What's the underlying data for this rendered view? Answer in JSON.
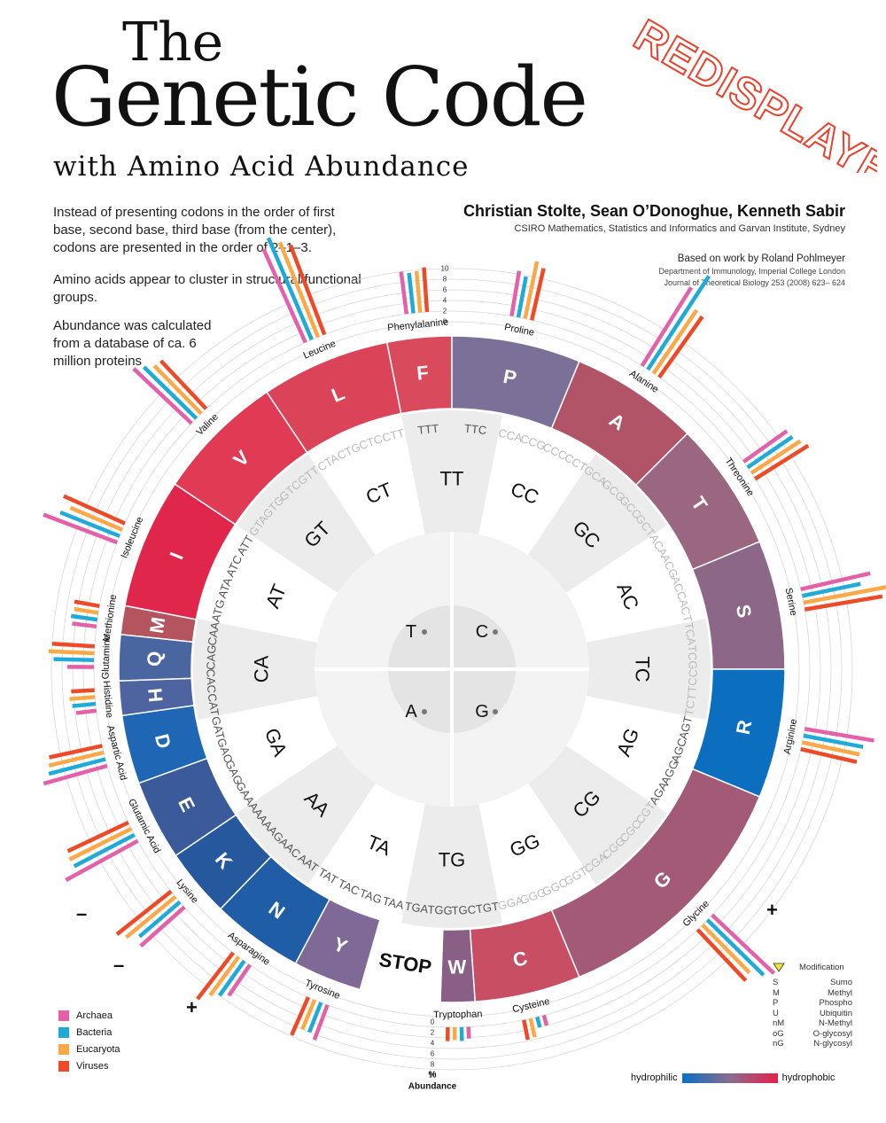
{
  "title": {
    "line1": "The",
    "line2": "Genetic Code",
    "subtitle": "with Amino Acid Abundance"
  },
  "stamp": "REDISPLAYED",
  "intro": [
    "Instead of presenting codons in the order of first base, second base, third base (from the center), codons are presented in the order of 2–1–3.",
    "Amino acids appear to cluster in structural/functional groups.",
    "Abundance was calculated from a database of ca. 6 million proteins"
  ],
  "authors": "Christian Stolte, Sean O’Donoghue, Kenneth Sabir",
  "affiliation": "CSIRO Mathematics, Statistics and Informatics and Garvan Institute, Sydney",
  "based_on": "Based on work by Roland Pohlmeyer",
  "department": "Department of Immunology, Imperial College London",
  "journal": "Journal of Theoretical Biology 253 (2008) 623– 624",
  "scale_top": [
    "10",
    "8",
    "6",
    "4",
    "2",
    "0"
  ],
  "scale_bottom": [
    "0",
    "2",
    "4",
    "6",
    "8",
    "10"
  ],
  "abundance_label": [
    "%",
    "Abundance"
  ],
  "center": [
    "T",
    "C",
    "A",
    "G"
  ],
  "wedges": [
    {
      "di": "TT",
      "codons": [
        [
          "TTT",
          1
        ],
        [
          "TTC",
          1
        ]
      ]
    },
    {
      "di": "CC",
      "codons": [
        [
          "CCA",
          0
        ],
        [
          "CCG",
          0
        ],
        [
          "CCC",
          0
        ],
        [
          "CCT",
          0
        ]
      ]
    },
    {
      "di": "GC",
      "codons": [
        [
          "GCA",
          0
        ],
        [
          "GCG",
          0
        ],
        [
          "GCC",
          0
        ],
        [
          "GCT",
          0
        ]
      ]
    },
    {
      "di": "AC",
      "codons": [
        [
          "ACA",
          0
        ],
        [
          "ACG",
          0
        ],
        [
          "ACC",
          0
        ],
        [
          "ACT",
          0
        ]
      ]
    },
    {
      "di": "TC",
      "codons": [
        [
          "TCA",
          0
        ],
        [
          "TCG",
          0
        ],
        [
          "TCC",
          0
        ],
        [
          "TCT",
          0
        ]
      ]
    },
    {
      "di": "AG",
      "codons": [
        [
          "AGT",
          1
        ],
        [
          "AGC",
          1
        ],
        [
          "AGG",
          1
        ],
        [
          "AGA",
          1
        ]
      ]
    },
    {
      "di": "CG",
      "codons": [
        [
          "CGT",
          0
        ],
        [
          "CGC",
          0
        ],
        [
          "CGG",
          0
        ],
        [
          "CGA",
          0
        ]
      ]
    },
    {
      "di": "GG",
      "codons": [
        [
          "GGT",
          0
        ],
        [
          "GGC",
          0
        ],
        [
          "GGG",
          0
        ],
        [
          "GGA",
          0
        ]
      ]
    },
    {
      "di": "TG",
      "codons": [
        [
          "TGT",
          1
        ],
        [
          "TGC",
          1
        ],
        [
          "TGG",
          1
        ],
        [
          "TGA",
          1
        ]
      ]
    },
    {
      "di": "TA",
      "codons": [
        [
          "TAA",
          1
        ],
        [
          "TAG",
          1
        ],
        [
          "TAC",
          1
        ],
        [
          "TAT",
          1
        ]
      ]
    },
    {
      "di": "AA",
      "codons": [
        [
          "AAT",
          1
        ],
        [
          "AAC",
          1
        ],
        [
          "AAG",
          1
        ],
        [
          "AAA",
          1
        ]
      ]
    },
    {
      "di": "GA",
      "codons": [
        [
          "GAA",
          1
        ],
        [
          "GAG",
          1
        ],
        [
          "GAC",
          1
        ],
        [
          "GAT",
          1
        ]
      ]
    },
    {
      "di": "CA",
      "codons": [
        [
          "CAT",
          1
        ],
        [
          "CAC",
          1
        ],
        [
          "CAG",
          1
        ],
        [
          "CAA",
          1
        ]
      ]
    },
    {
      "di": "AT",
      "codons": [
        [
          "ATG",
          1
        ],
        [
          "ATA",
          1
        ],
        [
          "ATC",
          1
        ],
        [
          "ATT",
          1
        ]
      ]
    },
    {
      "di": "GT",
      "codons": [
        [
          "GTA",
          0
        ],
        [
          "GTG",
          0
        ],
        [
          "GTC",
          0
        ],
        [
          "GTT",
          0
        ]
      ]
    },
    {
      "di": "CT",
      "codons": [
        [
          "CTA",
          0
        ],
        [
          "CTG",
          0
        ],
        [
          "CTC",
          0
        ],
        [
          "CTT",
          0
        ]
      ]
    },
    {
      "di": "TT",
      "codons": [
        [
          "TTA",
          1
        ],
        [
          "TTG",
          1
        ]
      ]
    }
  ],
  "amino_acids": [
    {
      "code": "F",
      "name": "Phenylalanine",
      "color": "#d94a5c",
      "abundance": [
        4.0,
        3.8,
        3.9,
        4.2
      ]
    },
    {
      "code": "P",
      "name": "Proline",
      "color": "#7a7098",
      "abundance": [
        4.3,
        3.9,
        5.5,
        5.0
      ]
    },
    {
      "code": "A",
      "name": "Alanine",
      "color": "#b25468",
      "abundance": [
        8.7,
        10.5,
        7.2,
        7.0
      ]
    },
    {
      "code": "T",
      "name": "Threonine",
      "color": "#9a6680",
      "abundance": [
        5.0,
        5.1,
        5.5,
        5.9
      ]
    },
    {
      "code": "S",
      "name": "Serine",
      "color": "#8c6788",
      "abundance": [
        6.7,
        5.6,
        8.2,
        7.4
      ]
    },
    {
      "code": "R",
      "name": "Arginine",
      "color": "#0b6ebf",
      "abundance": [
        6.6,
        5.7,
        5.5,
        5.4
      ]
    },
    {
      "code": "G",
      "name": "Glycine",
      "color": "#a25a76",
      "abundance": [
        8.0,
        7.4,
        6.3,
        6.6
      ]
    },
    {
      "code": "C",
      "name": "Cysteine",
      "color": "#c84e63",
      "abundance": [
        1.0,
        1.0,
        1.8,
        1.9
      ]
    },
    {
      "code": "W",
      "name": "Tryptophan",
      "color": "#8a5f86",
      "abundance": [
        1.1,
        1.3,
        1.2,
        1.3
      ]
    },
    {
      "code": "STOP",
      "name": "",
      "color": "#ffffff",
      "abundance": []
    },
    {
      "code": "Y",
      "name": "Tyrosine",
      "color": "#7f6996",
      "abundance": [
        3.5,
        3.0,
        3.0,
        3.9
      ]
    },
    {
      "code": "N",
      "name": "Asparagine",
      "color": "#1f5ea7",
      "abundance": [
        3.5,
        4.0,
        4.5,
        5.5
      ]
    },
    {
      "code": "K",
      "name": "Lysine",
      "color": "#26589e",
      "abundance": [
        5.5,
        5.0,
        6.0,
        6.5
      ]
    },
    {
      "code": "E",
      "name": "Glutamic Acid",
      "color": "#3a5a9a",
      "abundance": [
        7.7,
        6.4,
        6.5,
        6.3
      ]
    },
    {
      "code": "D",
      "name": "Aspartic Acid",
      "color": "#1f66b4",
      "abundance": [
        6.2,
        5.5,
        5.3,
        5.1
      ]
    },
    {
      "code": "H",
      "name": "Histidine",
      "color": "#4d64a0",
      "abundance": [
        1.9,
        2.2,
        2.4,
        2.2
      ]
    },
    {
      "code": "Q",
      "name": "Glutamine",
      "color": "#4a66a0",
      "abundance": [
        2.5,
        3.8,
        4.3,
        4.0
      ]
    },
    {
      "code": "M",
      "name": "Methionine",
      "color": "#b3545e",
      "abundance": [
        2.3,
        2.5,
        2.3,
        2.4
      ]
    },
    {
      "code": "I",
      "name": "Isoleucine",
      "color": "#e0264a",
      "abundance": [
        7.4,
        6.0,
        5.3,
        6.3
      ]
    },
    {
      "code": "V",
      "name": "Valine",
      "color": "#e03a54",
      "abundance": [
        7.5,
        6.9,
        6.3,
        6.2
      ]
    },
    {
      "code": "L",
      "name": "Leucine",
      "color": "#db4458",
      "abundance": [
        9.6,
        10.4,
        9.6,
        9.0
      ]
    }
  ],
  "series": [
    {
      "name": "Archaea",
      "color": "#e460a8"
    },
    {
      "name": "Bacteria",
      "color": "#20aad8"
    },
    {
      "name": "Eucaryota",
      "color": "#fba948"
    },
    {
      "name": "Viruses",
      "color": "#ee4a28"
    }
  ],
  "modification": {
    "title": "Modification",
    "rows": [
      [
        "S",
        "Sumo"
      ],
      [
        "M",
        "Methyl"
      ],
      [
        "P",
        "Phospho"
      ],
      [
        "U",
        "Ubiquitin"
      ],
      [
        "nM",
        "N-Methyl"
      ],
      [
        "oG",
        "O-glycosyl"
      ],
      [
        "nG",
        "N-glycosyl"
      ]
    ]
  },
  "hydro": {
    "left": "hydrophilic",
    "right": "hydrophobic",
    "start": "#0a6fc2",
    "end": "#e4204a"
  },
  "charge": {
    "minus": "–",
    "plus": "+"
  }
}
